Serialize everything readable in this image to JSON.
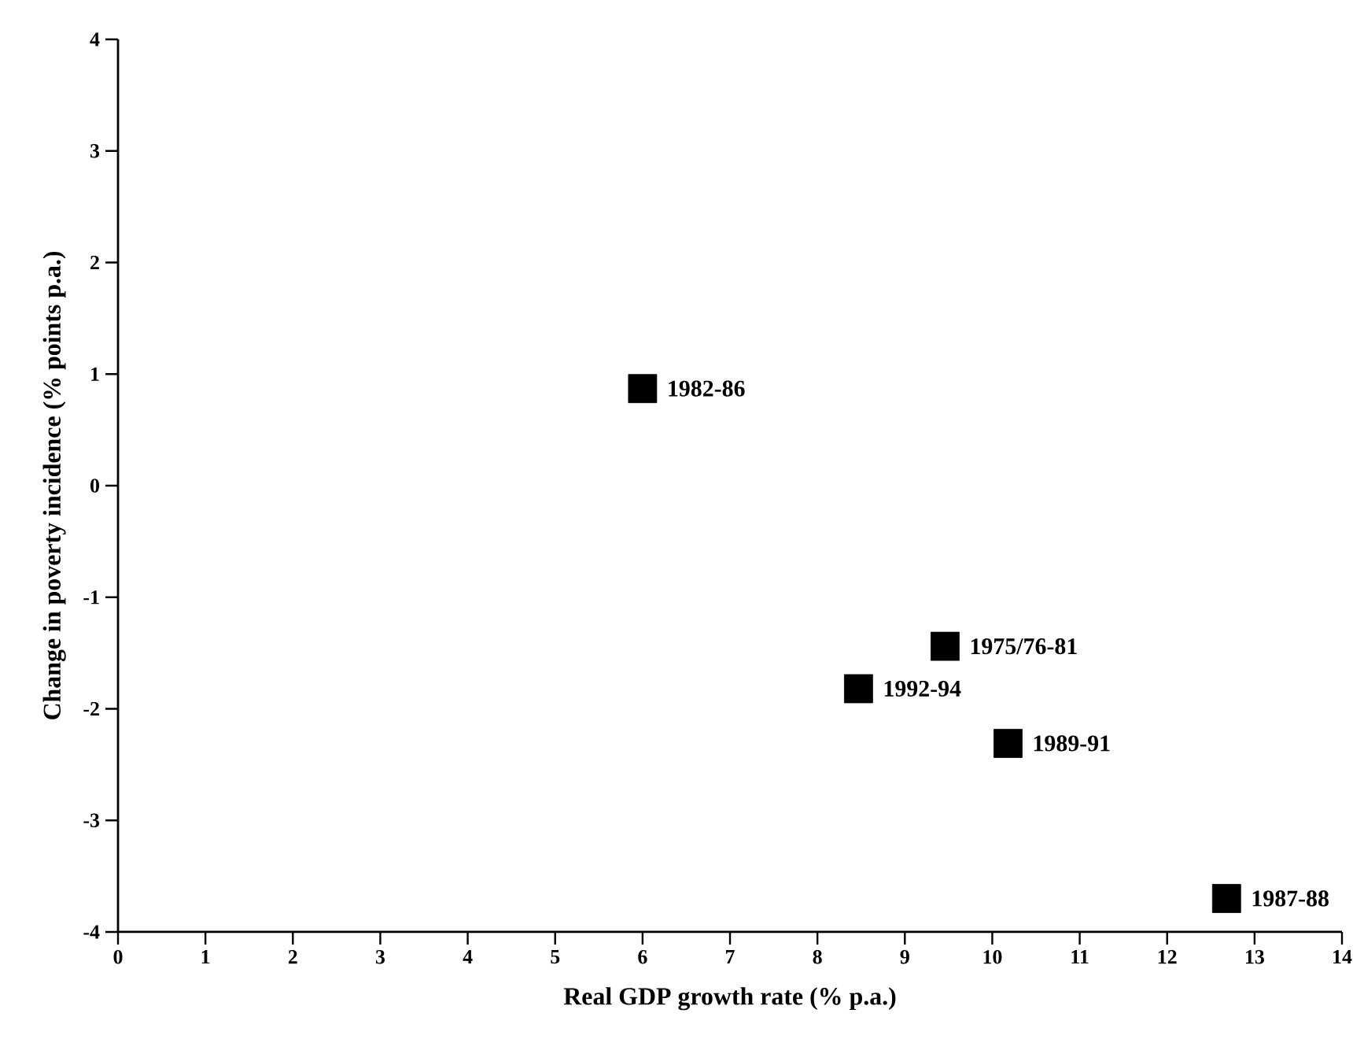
{
  "chart_data": {
    "type": "scatter",
    "xlabel": "Real GDP growth rate (% p.a.)",
    "ylabel": "Change in poverty incidence (% points p.a.)",
    "x": [
      9.46,
      6.0,
      12.68,
      10.18,
      8.47
    ],
    "values": [
      -1.44,
      0.87,
      -3.7,
      -2.31,
      -1.82
    ],
    "color": "#000000",
    "marker": "square",
    "xlim": [
      0,
      14
    ],
    "xticks": [
      0,
      1,
      2,
      3,
      4,
      5,
      6,
      7,
      8,
      9,
      10,
      11,
      12,
      13,
      14
    ],
    "ylim": [
      -4,
      4
    ],
    "yticks": [
      -4,
      -3,
      -2,
      -1,
      0,
      1,
      2,
      3,
      4
    ],
    "grid": false,
    "annotations": [
      {
        "text": "1975/76-81",
        "x": 9.46,
        "y": -1.44
      },
      {
        "text": "1982-86",
        "x": 6.0,
        "y": 0.87
      },
      {
        "text": "1987-88",
        "x": 12.68,
        "y": -3.7
      },
      {
        "text": "1989-91",
        "x": 10.18,
        "y": -2.31
      },
      {
        "text": "1992-94",
        "x": 8.47,
        "y": -1.82
      }
    ]
  }
}
